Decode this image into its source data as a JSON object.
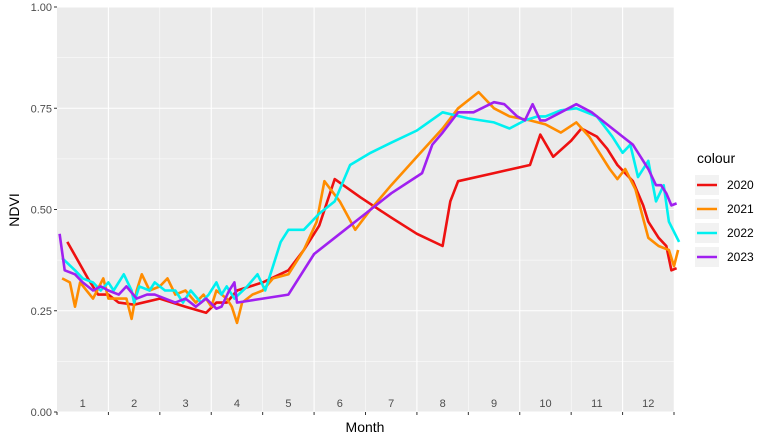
{
  "chart_data": {
    "type": "line",
    "xlabel": "Month",
    "ylabel": "NDVI",
    "ylim": [
      0,
      1
    ],
    "xlim": [
      0.5,
      12.5
    ],
    "y_ticks": [
      "0.00",
      "0.25",
      "0.50",
      "0.75",
      "1.00"
    ],
    "y_tick_values": [
      0,
      0.25,
      0.5,
      0.75,
      1.0
    ],
    "month_labels": [
      "1",
      "2",
      "3",
      "4",
      "5",
      "6",
      "7",
      "8",
      "9",
      "10",
      "11",
      "12"
    ],
    "grid": true,
    "legend": {
      "title": "colour",
      "position": "right"
    },
    "series": [
      {
        "name": "2020",
        "color": "#ee1111",
        "points": [
          [
            0.7,
            0.42
          ],
          [
            0.88,
            0.38
          ],
          [
            1.1,
            0.33
          ],
          [
            1.3,
            0.29
          ],
          [
            1.5,
            0.29
          ],
          [
            1.7,
            0.27
          ],
          [
            2.0,
            0.265
          ],
          [
            2.5,
            0.28
          ],
          [
            3.0,
            0.26
          ],
          [
            3.4,
            0.245
          ],
          [
            3.6,
            0.27
          ],
          [
            3.8,
            0.27
          ],
          [
            4.0,
            0.3
          ],
          [
            4.5,
            0.32
          ],
          [
            5.0,
            0.35
          ],
          [
            5.3,
            0.4
          ],
          [
            5.6,
            0.46
          ],
          [
            5.9,
            0.575
          ],
          [
            6.4,
            0.53
          ],
          [
            7.0,
            0.48
          ],
          [
            7.5,
            0.44
          ],
          [
            8.0,
            0.41
          ],
          [
            8.15,
            0.52
          ],
          [
            8.3,
            0.57
          ],
          [
            9.0,
            0.59
          ],
          [
            9.7,
            0.61
          ],
          [
            9.9,
            0.685
          ],
          [
            10.15,
            0.63
          ],
          [
            10.5,
            0.67
          ],
          [
            10.7,
            0.7
          ],
          [
            11.0,
            0.68
          ],
          [
            11.2,
            0.65
          ],
          [
            11.4,
            0.61
          ],
          [
            11.7,
            0.57
          ],
          [
            11.9,
            0.51
          ],
          [
            12.0,
            0.47
          ],
          [
            12.2,
            0.43
          ],
          [
            12.35,
            0.41
          ],
          [
            12.45,
            0.35
          ],
          [
            12.55,
            0.355
          ]
        ]
      },
      {
        "name": "2021",
        "color": "#ff8c00",
        "points": [
          [
            0.6,
            0.33
          ],
          [
            0.75,
            0.32
          ],
          [
            0.85,
            0.26
          ],
          [
            0.95,
            0.32
          ],
          [
            1.2,
            0.28
          ],
          [
            1.4,
            0.33
          ],
          [
            1.5,
            0.28
          ],
          [
            1.7,
            0.28
          ],
          [
            1.85,
            0.28
          ],
          [
            1.95,
            0.23
          ],
          [
            2.05,
            0.3
          ],
          [
            2.15,
            0.34
          ],
          [
            2.3,
            0.3
          ],
          [
            2.5,
            0.31
          ],
          [
            2.65,
            0.33
          ],
          [
            2.8,
            0.29
          ],
          [
            3.0,
            0.3
          ],
          [
            3.2,
            0.27
          ],
          [
            3.35,
            0.29
          ],
          [
            3.5,
            0.26
          ],
          [
            3.6,
            0.3
          ],
          [
            3.8,
            0.28
          ],
          [
            3.9,
            0.26
          ],
          [
            4.0,
            0.22
          ],
          [
            4.1,
            0.27
          ],
          [
            4.3,
            0.29
          ],
          [
            4.5,
            0.3
          ],
          [
            4.7,
            0.33
          ],
          [
            5.0,
            0.34
          ],
          [
            5.3,
            0.4
          ],
          [
            5.55,
            0.47
          ],
          [
            5.7,
            0.57
          ],
          [
            6.0,
            0.52
          ],
          [
            6.3,
            0.45
          ],
          [
            6.6,
            0.5
          ],
          [
            7.0,
            0.56
          ],
          [
            7.5,
            0.63
          ],
          [
            8.0,
            0.7
          ],
          [
            8.3,
            0.75
          ],
          [
            8.7,
            0.79
          ],
          [
            9.0,
            0.75
          ],
          [
            9.3,
            0.73
          ],
          [
            9.7,
            0.72
          ],
          [
            10.0,
            0.71
          ],
          [
            10.3,
            0.69
          ],
          [
            10.6,
            0.715
          ],
          [
            10.85,
            0.68
          ],
          [
            11.0,
            0.65
          ],
          [
            11.25,
            0.6
          ],
          [
            11.4,
            0.575
          ],
          [
            11.55,
            0.6
          ],
          [
            11.75,
            0.55
          ],
          [
            12.0,
            0.43
          ],
          [
            12.2,
            0.41
          ],
          [
            12.4,
            0.4
          ],
          [
            12.5,
            0.36
          ],
          [
            12.58,
            0.4
          ]
        ]
      },
      {
        "name": "2022",
        "color": "#00f0f0",
        "points": [
          [
            0.6,
            0.38
          ],
          [
            0.85,
            0.35
          ],
          [
            1.0,
            0.33
          ],
          [
            1.2,
            0.32
          ],
          [
            1.35,
            0.3
          ],
          [
            1.5,
            0.32
          ],
          [
            1.6,
            0.3
          ],
          [
            1.8,
            0.34
          ],
          [
            1.95,
            0.3
          ],
          [
            2.0,
            0.27
          ],
          [
            2.1,
            0.31
          ],
          [
            2.3,
            0.3
          ],
          [
            2.4,
            0.32
          ],
          [
            2.6,
            0.3
          ],
          [
            2.8,
            0.3
          ],
          [
            2.95,
            0.27
          ],
          [
            3.1,
            0.3
          ],
          [
            3.3,
            0.27
          ],
          [
            3.45,
            0.29
          ],
          [
            3.6,
            0.32
          ],
          [
            3.7,
            0.29
          ],
          [
            3.8,
            0.31
          ],
          [
            3.95,
            0.28
          ],
          [
            4.2,
            0.31
          ],
          [
            4.4,
            0.34
          ],
          [
            4.55,
            0.3
          ],
          [
            4.7,
            0.36
          ],
          [
            4.85,
            0.42
          ],
          [
            5.0,
            0.45
          ],
          [
            5.3,
            0.45
          ],
          [
            5.6,
            0.49
          ],
          [
            5.9,
            0.52
          ],
          [
            6.2,
            0.61
          ],
          [
            6.6,
            0.64
          ],
          [
            7.0,
            0.665
          ],
          [
            7.5,
            0.695
          ],
          [
            8.0,
            0.74
          ],
          [
            8.5,
            0.725
          ],
          [
            9.0,
            0.715
          ],
          [
            9.3,
            0.7
          ],
          [
            9.6,
            0.72
          ],
          [
            9.85,
            0.73
          ],
          [
            10.0,
            0.73
          ],
          [
            10.3,
            0.745
          ],
          [
            10.6,
            0.75
          ],
          [
            11.0,
            0.73
          ],
          [
            11.3,
            0.68
          ],
          [
            11.5,
            0.64
          ],
          [
            11.65,
            0.66
          ],
          [
            11.8,
            0.58
          ],
          [
            12.0,
            0.62
          ],
          [
            12.15,
            0.52
          ],
          [
            12.3,
            0.56
          ],
          [
            12.4,
            0.47
          ],
          [
            12.6,
            0.42
          ]
        ]
      },
      {
        "name": "2023",
        "color": "#a020f0",
        "points": [
          [
            0.55,
            0.44
          ],
          [
            0.65,
            0.35
          ],
          [
            0.85,
            0.34
          ],
          [
            1.0,
            0.32
          ],
          [
            1.2,
            0.3
          ],
          [
            1.35,
            0.31
          ],
          [
            1.5,
            0.3
          ],
          [
            1.7,
            0.29
          ],
          [
            1.85,
            0.31
          ],
          [
            2.05,
            0.28
          ],
          [
            2.25,
            0.29
          ],
          [
            2.4,
            0.29
          ],
          [
            2.6,
            0.28
          ],
          [
            2.8,
            0.27
          ],
          [
            3.0,
            0.28
          ],
          [
            3.2,
            0.26
          ],
          [
            3.4,
            0.28
          ],
          [
            3.6,
            0.255
          ],
          [
            3.7,
            0.26
          ],
          [
            3.85,
            0.3
          ],
          [
            3.95,
            0.32
          ],
          [
            4.0,
            0.27
          ],
          [
            4.5,
            0.28
          ],
          [
            5.0,
            0.29
          ],
          [
            5.5,
            0.39
          ],
          [
            6.0,
            0.44
          ],
          [
            6.5,
            0.49
          ],
          [
            7.0,
            0.54
          ],
          [
            7.6,
            0.59
          ],
          [
            7.8,
            0.66
          ],
          [
            8.0,
            0.69
          ],
          [
            8.3,
            0.74
          ],
          [
            8.6,
            0.74
          ],
          [
            9.0,
            0.765
          ],
          [
            9.2,
            0.76
          ],
          [
            9.45,
            0.73
          ],
          [
            9.6,
            0.72
          ],
          [
            9.75,
            0.76
          ],
          [
            9.9,
            0.72
          ],
          [
            10.0,
            0.72
          ],
          [
            10.3,
            0.74
          ],
          [
            10.6,
            0.76
          ],
          [
            10.9,
            0.74
          ],
          [
            11.1,
            0.72
          ],
          [
            11.3,
            0.7
          ],
          [
            11.5,
            0.68
          ],
          [
            11.7,
            0.66
          ],
          [
            11.85,
            0.63
          ],
          [
            12.0,
            0.6
          ],
          [
            12.15,
            0.56
          ],
          [
            12.25,
            0.56
          ],
          [
            12.35,
            0.54
          ],
          [
            12.45,
            0.51
          ],
          [
            12.55,
            0.515
          ]
        ]
      }
    ]
  }
}
